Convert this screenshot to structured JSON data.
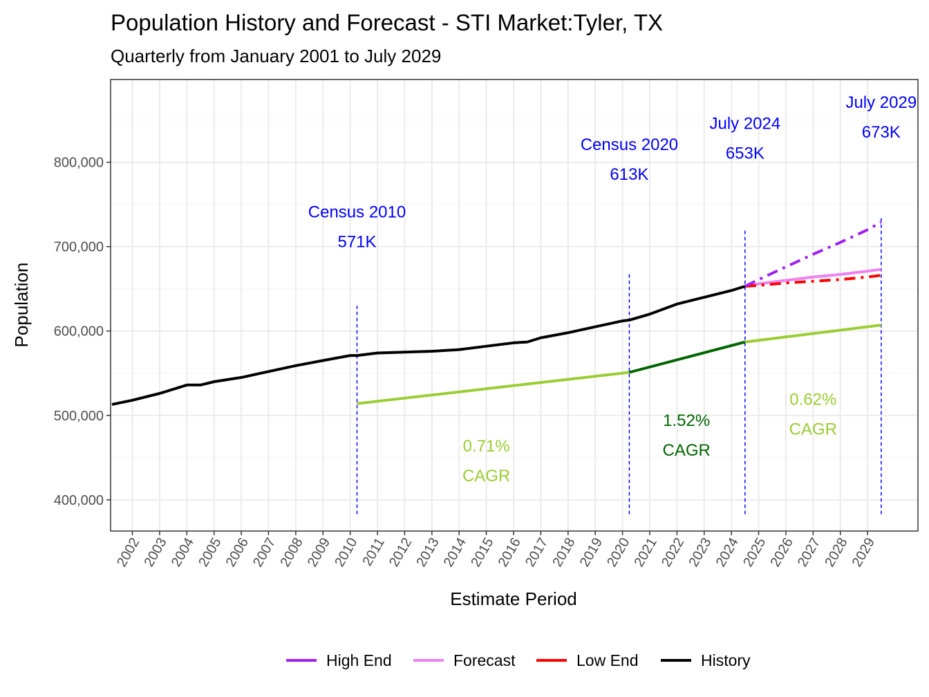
{
  "chart_data": {
    "type": "line",
    "title": "Population History and Forecast - STI Market:Tyler, TX",
    "subtitle": "Quarterly from January 2001 to July 2029",
    "xlabel": "Estimate Period",
    "ylabel": "Population",
    "xlim": [
      2001.2,
      2030.85
    ],
    "ylim": [
      363000,
      898000
    ],
    "x_ticks": [
      "2002",
      "2003",
      "2004",
      "2005",
      "2006",
      "2007",
      "2008",
      "2009",
      "2010",
      "2011",
      "2012",
      "2013",
      "2014",
      "2015",
      "2016",
      "2017",
      "2018",
      "2019",
      "2020",
      "2021",
      "2022",
      "2023",
      "2024",
      "2025",
      "2026",
      "2027",
      "2028",
      "2029"
    ],
    "y_ticks": [
      400000,
      500000,
      600000,
      700000,
      800000
    ],
    "y_tick_labels": [
      "400,000",
      "500,000",
      "600,000",
      "700,000",
      "800,000"
    ],
    "series": [
      {
        "name": "History",
        "color": "#000000",
        "dash": "solid",
        "x": [
          2001.25,
          2002,
          2003,
          2004,
          2004.5,
          2005,
          2006,
          2007,
          2008,
          2009,
          2010,
          2010.25,
          2011,
          2012,
          2013,
          2014,
          2015,
          2016,
          2016.5,
          2017,
          2018,
          2019,
          2020,
          2020.25,
          2021,
          2022,
          2023,
          2024,
          2024.5
        ],
        "y": [
          513000,
          518000,
          526000,
          536000,
          536000,
          540000,
          545000,
          552000,
          559000,
          565000,
          571000,
          571000,
          574000,
          575000,
          576000,
          578000,
          582000,
          586000,
          587000,
          592000,
          598000,
          605000,
          612000,
          613000,
          620000,
          632000,
          640000,
          648000,
          653000
        ]
      },
      {
        "name": "Forecast",
        "color": "#ee82ee",
        "dash": "solid",
        "x": [
          2024.5,
          2025,
          2026,
          2027,
          2028,
          2029,
          2029.5
        ],
        "y": [
          653000,
          656000,
          660000,
          664000,
          667000,
          671000,
          673000
        ]
      },
      {
        "name": "High End",
        "color": "#a020f0",
        "dash": "dashdot",
        "x": [
          2024.5,
          2025,
          2026,
          2027,
          2028,
          2029,
          2029.5
        ],
        "y": [
          653000,
          661000,
          676000,
          691000,
          705000,
          720000,
          729000
        ]
      },
      {
        "name": "Low End",
        "color": "#ff0000",
        "dash": "dashdot",
        "x": [
          2024.5,
          2025,
          2026,
          2027,
          2028,
          2029,
          2029.5
        ],
        "y": [
          653000,
          654000,
          657000,
          659000,
          661000,
          664000,
          666000
        ]
      },
      {
        "name": "CAGR 2010-2020",
        "color": "#9acd32",
        "dash": "solid",
        "legend": false,
        "x": [
          2010.25,
          2020.25
        ],
        "y": [
          514000,
          551000
        ]
      },
      {
        "name": "CAGR 2020-2024",
        "color": "#006400",
        "dash": "solid",
        "legend": false,
        "x": [
          2020.25,
          2024.5
        ],
        "y": [
          551000,
          587000
        ]
      },
      {
        "name": "CAGR 2024-2029",
        "color": "#9acd32",
        "dash": "solid",
        "legend": false,
        "x": [
          2024.5,
          2029.5
        ],
        "y": [
          587000,
          607000
        ]
      }
    ],
    "vlines": [
      {
        "x": 2010.25,
        "y_from": 383000,
        "y_to": 630000
      },
      {
        "x": 2020.25,
        "y_from": 383000,
        "y_to": 670000
      },
      {
        "x": 2024.5,
        "y_from": 383000,
        "y_to": 720000
      },
      {
        "x": 2029.5,
        "y_from": 383000,
        "y_to": 735000
      }
    ],
    "annotations": [
      {
        "x": 2010.25,
        "y": 718000,
        "line1": "Census 2010",
        "line2": "571K",
        "color": "#0000ff"
      },
      {
        "x": 2020.25,
        "y": 798000,
        "line1": "Census 2020",
        "line2": "613K",
        "color": "#0000ff"
      },
      {
        "x": 2024.5,
        "y": 823000,
        "line1": "July 2024",
        "line2": "653K",
        "color": "#0000ff"
      },
      {
        "x": 2029.5,
        "y": 848000,
        "line1": "July 2029",
        "line2": "673K",
        "color": "#0000ff"
      },
      {
        "x": 2015.0,
        "y": 441000,
        "line1": "0.71%",
        "line2": "CAGR",
        "color": "#9acd32"
      },
      {
        "x": 2022.35,
        "y": 471000,
        "line1": "1.52%",
        "line2": "CAGR",
        "color": "#006400"
      },
      {
        "x": 2027.0,
        "y": 496000,
        "line1": "0.62%",
        "line2": "CAGR",
        "color": "#9acd32"
      }
    ],
    "legend": {
      "position": "bottom",
      "entries": [
        {
          "label": "High End",
          "color": "#a020f0"
        },
        {
          "label": "Forecast",
          "color": "#ee82ee"
        },
        {
          "label": "Low End",
          "color": "#ff0000"
        },
        {
          "label": "History",
          "color": "#000000"
        }
      ]
    }
  }
}
